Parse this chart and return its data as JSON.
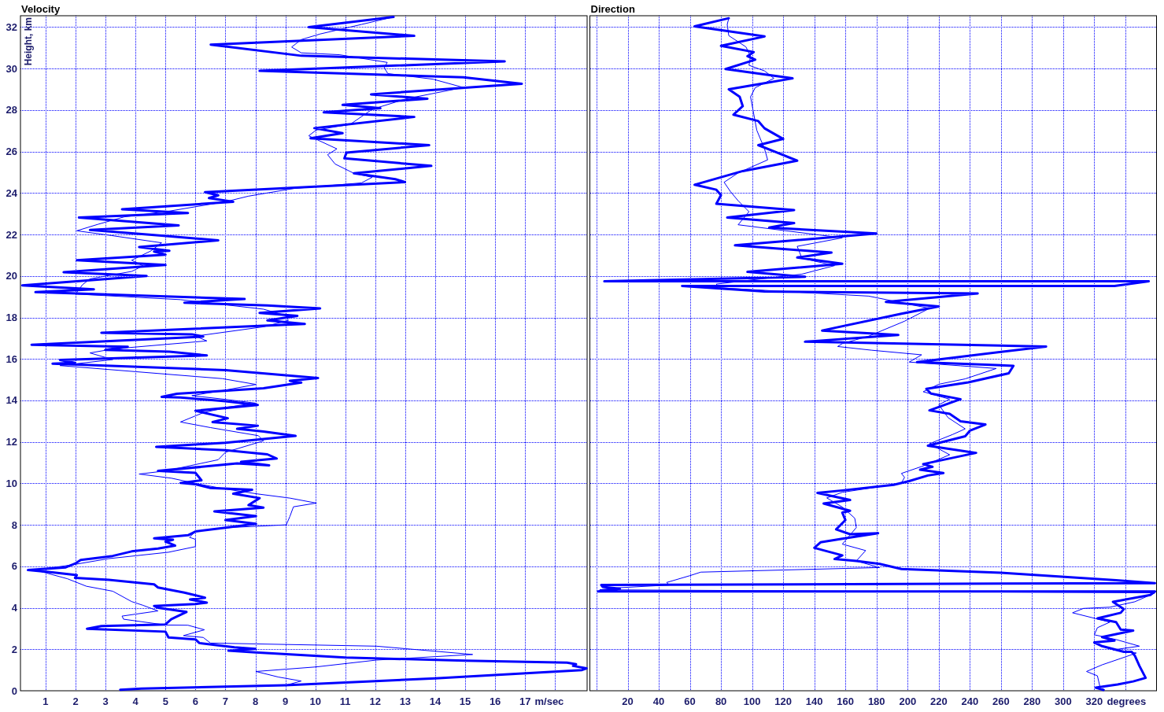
{
  "chart_data": [
    {
      "type": "line",
      "title": "Velocity",
      "xlabel": "m/sec",
      "ylabel": "Height, km",
      "xlim": [
        0.16,
        19.07
      ],
      "xticks": [
        1,
        2,
        3,
        4,
        5,
        6,
        7,
        8,
        9,
        10,
        11,
        12,
        13,
        14,
        15,
        16,
        17,
        {
          "value": 18,
          "label": null
        }
      ],
      "ylim": [
        0,
        32.55
      ],
      "yticks": [
        0,
        2,
        4,
        6,
        8,
        10,
        12,
        14,
        16,
        18,
        20,
        22,
        24,
        26,
        28,
        30,
        32
      ],
      "grid": true,
      "series": [
        {
          "color": "#0000ff",
          "x": [
            3.49,
            4.2,
            9.0,
            14.0,
            18.9,
            19.05,
            18.6,
            18.7,
            18.4,
            15.0,
            11.0,
            8.0,
            7.1,
            8.0,
            7.3,
            6.13,
            6.0,
            5.1,
            5.0,
            2.38,
            2.86,
            5.0,
            5.19,
            5.38,
            5.7,
            4.75,
            4.62,
            6.0,
            6.38,
            5.82,
            6.32,
            5.63,
            4.75,
            4.62,
            3.11,
            1.98,
            2.04,
            1.23,
            0.41,
            1.67,
            1.98,
            2.17,
            3.24,
            3.87,
            4.75,
            5.32,
            5.0,
            5.25,
            4.62,
            5.75,
            6.0,
            7.0,
            8.02,
            7.0,
            8.02,
            6.63,
            8.27,
            7.77,
            8.14,
            7.26,
            7.89,
            6.5,
            6.0,
            5.5,
            6.2,
            6.0,
            4.75,
            7.39,
            8.46,
            7.52,
            8.71,
            8.4,
            7.01,
            4.69,
            7.01,
            9.34,
            8.27,
            7.39,
            8.08,
            6.57,
            7.08,
            6.0,
            8.08,
            7.01,
            5.5,
            4.87,
            5.38,
            8.27,
            9.53,
            9.15,
            10.09,
            7.01,
            1.23,
            1.98,
            1.48,
            6.38,
            5.13,
            2.99,
            3.74,
            0.53,
            6.26,
            5.88,
            2.86,
            9.65,
            8.4,
            9.4,
            8.14,
            10.16,
            8.4,
            5.63,
            7.64,
            0.66,
            2.61,
            0.22,
            4.37,
            1.6,
            5.0,
            2.04,
            5.0,
            4.62,
            5.13,
            4.12,
            6.76,
            4.87,
            2.48,
            5.44,
            2.11,
            5.75,
            3.55,
            7.26,
            6.45,
            6.76,
            6.32,
            12.99,
            12.67,
            11.29,
            13.87,
            10.97,
            11.04,
            13.8,
            9.84,
            10.91,
            9.97,
            13.3,
            10.28,
            12.17,
            10.91,
            13.74,
            11.86,
            16.89,
            14.94,
            8.14,
            16.32,
            9.53,
            6.51,
            13.3,
            9.78,
            12.61
          ],
          "values": [
            0.05,
            0.1,
            0.27,
            0.6,
            1.0,
            1.08,
            1.2,
            1.28,
            1.36,
            1.45,
            1.6,
            1.85,
            1.93,
            2.02,
            2.1,
            2.3,
            2.48,
            2.57,
            2.85,
            2.99,
            3.12,
            3.2,
            3.45,
            3.58,
            3.8,
            4.0,
            4.09,
            4.18,
            4.25,
            4.4,
            4.49,
            4.73,
            4.98,
            5.13,
            5.35,
            5.44,
            5.58,
            5.71,
            5.82,
            5.95,
            6.13,
            6.31,
            6.5,
            6.72,
            6.86,
            7.0,
            7.19,
            7.28,
            7.35,
            7.5,
            7.68,
            7.86,
            8.05,
            8.23,
            8.42,
            8.65,
            8.83,
            8.95,
            9.29,
            9.5,
            9.69,
            9.78,
            9.96,
            10.02,
            10.15,
            10.51,
            10.6,
            10.96,
            10.87,
            11.04,
            11.2,
            11.4,
            11.6,
            11.76,
            11.96,
            12.29,
            12.5,
            12.63,
            12.78,
            12.96,
            13.14,
            13.5,
            13.78,
            13.96,
            14.14,
            14.17,
            14.32,
            14.59,
            14.86,
            14.95,
            15.08,
            15.46,
            15.77,
            15.81,
            15.95,
            16.17,
            16.35,
            16.44,
            16.59,
            16.68,
            17.08,
            17.19,
            17.26,
            17.69,
            17.86,
            18.08,
            18.22,
            18.44,
            18.58,
            18.71,
            18.89,
            19.22,
            19.36,
            19.55,
            20.0,
            20.18,
            20.53,
            20.76,
            21.03,
            21.18,
            21.22,
            21.4,
            21.72,
            21.95,
            22.22,
            22.44,
            22.82,
            23.04,
            23.22,
            23.58,
            23.76,
            23.89,
            24.04,
            24.53,
            24.67,
            24.95,
            25.31,
            25.67,
            25.95,
            26.31,
            26.64,
            26.89,
            27.13,
            27.67,
            27.89,
            28.09,
            28.25,
            28.55,
            28.76,
            29.27,
            29.58,
            29.89,
            30.35,
            30.62,
            31.16,
            31.58,
            32.0,
            32.49
          ]
        },
        {
          "color": "#0000ff",
          "x": [
            9.03,
            9.53,
            8.77,
            8.02,
            10.03,
            12.04,
            15.25,
            12.04,
            6.5,
            6.26,
            5.6,
            6.3,
            5.75,
            5.0,
            3.6,
            3.55,
            4.75,
            4.25,
            3.87,
            3.24,
            2.36,
            1.73,
            0.66,
            1.92,
            3.1,
            5.1,
            6.0,
            6.0,
            5.8,
            6.0,
            7.0,
            9.03,
            9.15,
            9.27,
            10.03,
            9.15,
            8.02,
            7.0,
            6.13,
            5.2,
            4.12,
            5.0,
            6.76,
            7.0,
            8.27,
            8.1,
            6.5,
            5.5,
            6.26,
            7.1,
            8.0,
            7.0,
            5.88,
            7.0,
            8.02,
            6.9,
            1.48,
            3.24,
            2.48,
            3.24,
            6.38,
            6.0,
            8.27,
            9.1,
            9.0,
            8.27,
            5.5,
            2.0,
            2.23,
            2.48,
            3.87,
            4.25,
            3.87,
            4.5,
            4.87,
            3.2,
            2.04,
            2.74,
            3.62,
            5.13,
            7.0,
            7.77,
            9.28,
            11.54,
            11.9,
            11.29,
            10.66,
            10.41,
            10.72,
            9.78,
            10.03,
            11.16,
            11.9,
            13.05,
            14.94,
            13.93,
            12.42,
            12.3,
            12.4,
            10.8,
            9.53,
            9.21,
            9.53,
            10.16,
            11.54,
            12.61
          ],
          "values": [
            0.27,
            0.47,
            0.66,
            0.93,
            1.15,
            1.48,
            1.75,
            2.15,
            2.3,
            2.57,
            2.66,
            2.94,
            3.16,
            3.17,
            3.45,
            3.6,
            3.85,
            4.12,
            4.3,
            4.8,
            5.04,
            5.4,
            5.82,
            6.08,
            6.37,
            6.68,
            6.95,
            7.3,
            7.4,
            7.68,
            7.86,
            8.0,
            8.4,
            8.87,
            9.05,
            9.29,
            9.5,
            9.73,
            9.96,
            10.25,
            10.45,
            10.6,
            11.14,
            11.5,
            12.05,
            12.3,
            12.69,
            12.96,
            13.41,
            13.68,
            13.87,
            14.05,
            14.23,
            14.5,
            14.77,
            15.05,
            15.68,
            15.97,
            16.29,
            16.48,
            16.87,
            17.1,
            17.55,
            17.86,
            18.1,
            18.4,
            18.86,
            19.13,
            19.58,
            19.86,
            20.22,
            20.49,
            20.76,
            21.2,
            21.6,
            21.95,
            22.18,
            22.49,
            22.85,
            23.13,
            23.58,
            23.85,
            24.22,
            24.49,
            24.76,
            24.95,
            25.4,
            25.85,
            26.13,
            26.76,
            27.04,
            27.31,
            28.04,
            28.55,
            29.09,
            29.49,
            29.76,
            30.04,
            30.3,
            30.67,
            30.76,
            31.04,
            31.4,
            31.67,
            32.13,
            32.49
          ]
        }
      ]
    },
    {
      "type": "line",
      "title": "Direction",
      "xlabel": "degrees",
      "xlim": [
        -4.3,
        360
      ],
      "xticks": [
        {
          "value": 0,
          "label": null
        },
        20,
        40,
        60,
        80,
        100,
        120,
        140,
        160,
        180,
        200,
        220,
        240,
        260,
        280,
        300,
        320,
        {
          "value": 340,
          "label": null
        }
      ],
      "ylim": [
        0,
        32.55
      ],
      "yticks": [
        0,
        2,
        4,
        6,
        8,
        10,
        12,
        14,
        16,
        18,
        20,
        22,
        24,
        26,
        28,
        30,
        32
      ],
      "tick_labels": "x",
      "grid": true,
      "series": [
        {
          "color": "#0000ff",
          "x": [
            326,
            321,
            335,
            345,
            353,
            349,
            346,
            344,
            339,
            325,
            320,
            333,
            325,
            345,
            337,
            334,
            322,
            337,
            339,
            332,
            356,
            359,
            1,
            15,
            4,
            3,
            359,
            334,
            260,
            196,
            182,
            167,
            153,
            158,
            140,
            144,
            158,
            181,
            163,
            154,
            160,
            158,
            163,
            146,
            163,
            142,
            158,
            191,
            201,
            213,
            223,
            208,
            216,
            210,
            244,
            213,
            237,
            240,
            250,
            234,
            227,
            214,
            234,
            215,
            212,
            239,
            265,
            268,
            206,
            289,
            134,
            194,
            145,
            196,
            220,
            186,
            245,
            108,
            55,
            333,
            355,
            5,
            134,
            97,
            158,
            129,
            151,
            89,
            180,
            122,
            111,
            127,
            84,
            127,
            77,
            80,
            77,
            63,
            94,
            129,
            116,
            104,
            120,
            108,
            104,
            88,
            94,
            92,
            85,
            105,
            126,
            83,
            102,
            97,
            101,
            80,
            108,
            63,
            85
          ],
          "values": [
            0.04,
            0.15,
            0.3,
            0.45,
            0.62,
            1.2,
            1.7,
            1.88,
            1.88,
            2.15,
            2.33,
            2.42,
            2.59,
            2.9,
            2.95,
            3.31,
            3.49,
            3.76,
            3.94,
            4.29,
            4.62,
            4.79,
            4.79,
            4.92,
            5.01,
            5.1,
            5.19,
            5.33,
            5.69,
            5.87,
            6.12,
            6.26,
            6.35,
            6.53,
            6.89,
            7.16,
            7.33,
            7.6,
            7.55,
            7.78,
            8.23,
            8.59,
            8.68,
            9.03,
            9.2,
            9.54,
            9.66,
            9.93,
            10.11,
            10.38,
            10.5,
            10.66,
            10.8,
            10.93,
            11.47,
            11.82,
            12.27,
            12.54,
            12.84,
            12.99,
            13.35,
            13.52,
            14.06,
            14.33,
            14.56,
            14.87,
            15.31,
            15.67,
            15.85,
            16.6,
            16.83,
            17.16,
            17.37,
            18.18,
            18.53,
            18.75,
            19.16,
            19.25,
            19.52,
            19.52,
            19.75,
            19.75,
            19.96,
            20.2,
            20.59,
            20.89,
            21.13,
            21.48,
            22.05,
            22.29,
            22.34,
            22.55,
            22.82,
            23.18,
            23.48,
            23.9,
            24.16,
            24.4,
            25.06,
            25.56,
            25.95,
            26.31,
            26.61,
            27.12,
            27.47,
            27.78,
            28.19,
            28.64,
            29.0,
            29.26,
            29.53,
            29.98,
            30.43,
            30.6,
            30.8,
            31.1,
            31.55,
            32.04,
            32.43
          ]
        },
        {
          "color": "#0000ff",
          "x": [
            324,
            322,
            315,
            325,
            341,
            347,
            332,
            349,
            334,
            320,
            322,
            330,
            306,
            313,
            330,
            346,
            356,
            359,
            2,
            15,
            47,
            45,
            60,
            67,
            134,
            182,
            167,
            173,
            158,
            167,
            166,
            158,
            148,
            158,
            182,
            196,
            198,
            196,
            210,
            227,
            214,
            229,
            237,
            226,
            220,
            227,
            210,
            220,
            237,
            257,
            234,
            201,
            209,
            177,
            155,
            158,
            175,
            198,
            214,
            175,
            79,
            77,
            132,
            153,
            132,
            129,
            158,
            91,
            98,
            91,
            86,
            82,
            91,
            110,
            108,
            103,
            101,
            99,
            102,
            114,
            108,
            98,
            99,
            96,
            85,
            84,
            85
          ],
          "values": [
            0.07,
            0.72,
            0.93,
            1.25,
            1.66,
            1.82,
            1.97,
            2.15,
            2.47,
            2.7,
            3.04,
            3.31,
            3.76,
            3.97,
            4.03,
            4.29,
            4.62,
            4.72,
            4.87,
            4.97,
            5.1,
            5.22,
            5.55,
            5.72,
            5.85,
            5.94,
            6.26,
            6.76,
            7.07,
            7.87,
            8.32,
            8.86,
            9.3,
            9.57,
            9.84,
            10.02,
            10.29,
            10.48,
            10.84,
            11.38,
            11.91,
            12.36,
            12.63,
            13.17,
            13.79,
            14.06,
            14.42,
            14.78,
            15.04,
            15.54,
            15.67,
            15.85,
            16.2,
            16.42,
            16.6,
            16.74,
            17.1,
            17.82,
            18.44,
            19.03,
            19.43,
            19.61,
            20.09,
            20.5,
            20.86,
            21.43,
            21.84,
            22.47,
            23.1,
            23.63,
            24.08,
            24.52,
            24.97,
            25.6,
            26.13,
            27.03,
            27.83,
            28.64,
            29.08,
            29.53,
            29.89,
            30.16,
            30.6,
            31.05,
            31.59,
            32.13,
            32.43
          ]
        }
      ]
    }
  ]
}
